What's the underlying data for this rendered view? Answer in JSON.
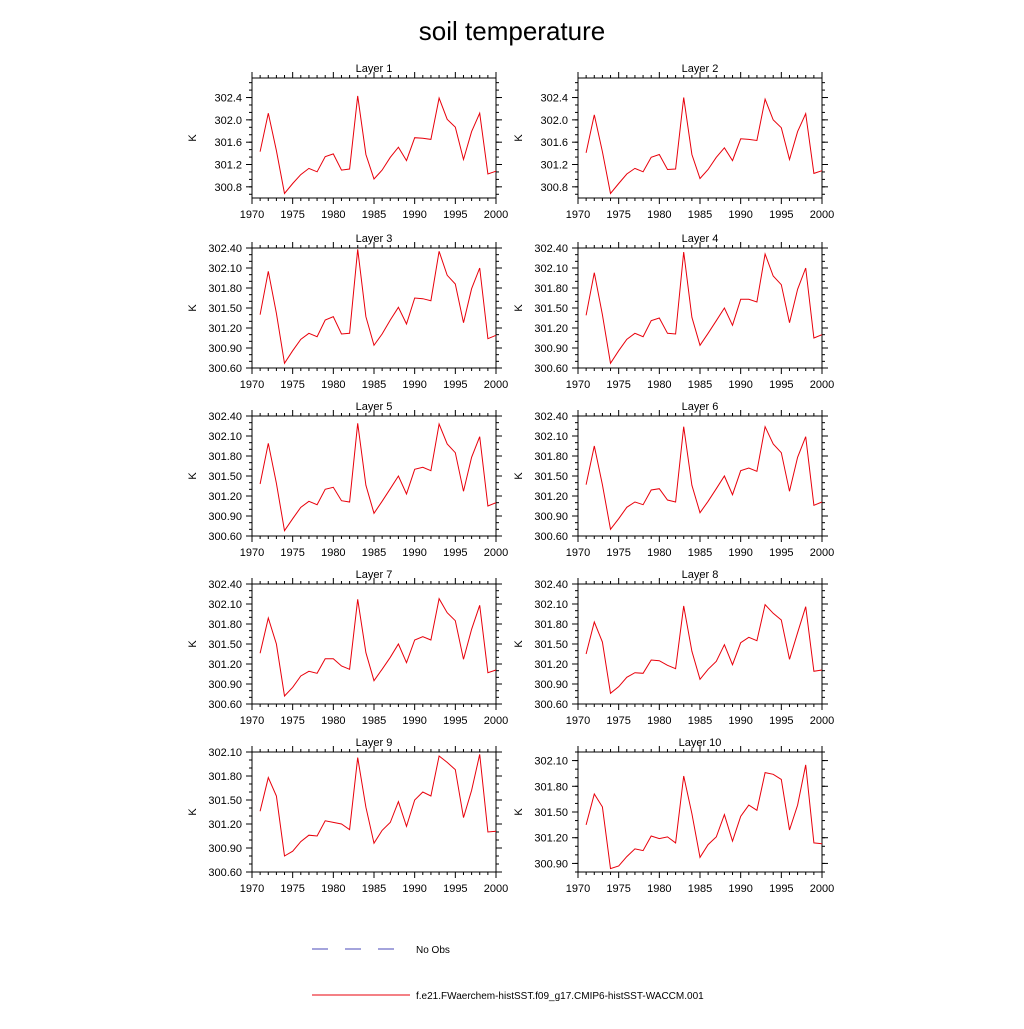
{
  "title": "soil temperature",
  "colors": {
    "model": "#e8000b",
    "obs": "#4a4ab8",
    "axis": "#000000"
  },
  "legend": {
    "obs_label": "No Obs",
    "model_label": "f.e21.FWaerchem-histSST.f09_g17.CMIP6-histSST-WACCM.001"
  },
  "chart_data": [
    {
      "type": "line",
      "title": "Layer 1",
      "ylabel": "K",
      "xlim": [
        1970,
        2000
      ],
      "xticks": [
        1970,
        1975,
        1980,
        1985,
        1990,
        1995,
        2000
      ],
      "ylim": [
        300.6,
        302.75
      ],
      "yticks": [
        "300.8",
        "301.2",
        "301.6",
        "302.0",
        "302.4"
      ],
      "x": [
        1971,
        1972,
        1973,
        1974,
        1975,
        1976,
        1977,
        1978,
        1979,
        1980,
        1981,
        1982,
        1983,
        1984,
        1985,
        1986,
        1987,
        1988,
        1989,
        1990,
        1991,
        1992,
        1993,
        1994,
        1995,
        1996,
        1997,
        1998,
        1999,
        2000
      ],
      "series": [
        {
          "name": "f.e21.FWaerchem-histSST.f09_g17.CMIP6-histSST-WACCM.001",
          "values": [
            301.43,
            302.12,
            301.45,
            300.68,
            300.86,
            301.02,
            301.13,
            301.07,
            301.34,
            301.39,
            301.1,
            301.12,
            302.43,
            301.38,
            300.94,
            301.1,
            301.33,
            301.51,
            301.27,
            301.68,
            301.67,
            301.65,
            302.39,
            302.01,
            301.87,
            301.29,
            301.79,
            302.12,
            301.03,
            301.08
          ]
        }
      ]
    },
    {
      "type": "line",
      "title": "Layer 2",
      "ylabel": "K",
      "xlim": [
        1970,
        2000
      ],
      "xticks": [
        1970,
        1975,
        1980,
        1985,
        1990,
        1995,
        2000
      ],
      "ylim": [
        300.6,
        302.75
      ],
      "yticks": [
        "300.8",
        "301.2",
        "301.6",
        "302.0",
        "302.4"
      ],
      "x": [
        1971,
        1972,
        1973,
        1974,
        1975,
        1976,
        1977,
        1978,
        1979,
        1980,
        1981,
        1982,
        1983,
        1984,
        1985,
        1986,
        1987,
        1988,
        1989,
        1990,
        1991,
        1992,
        1993,
        1994,
        1995,
        1996,
        1997,
        1998,
        1999,
        2000
      ],
      "series": [
        {
          "name": "f.e21.FWaerchem-histSST.f09_g17.CMIP6-histSST-WACCM.001",
          "values": [
            301.41,
            302.09,
            301.43,
            300.68,
            300.86,
            301.03,
            301.13,
            301.07,
            301.33,
            301.38,
            301.11,
            301.12,
            302.4,
            301.38,
            300.95,
            301.11,
            301.33,
            301.5,
            301.27,
            301.66,
            301.65,
            301.63,
            302.37,
            302.0,
            301.86,
            301.29,
            301.79,
            302.11,
            301.04,
            301.09
          ]
        }
      ]
    },
    {
      "type": "line",
      "title": "Layer 3",
      "ylabel": "K",
      "xlim": [
        1970,
        2000
      ],
      "xticks": [
        1970,
        1975,
        1980,
        1985,
        1990,
        1995,
        2000
      ],
      "ylim": [
        300.6,
        302.4
      ],
      "yticks": [
        "300.60",
        "300.90",
        "301.20",
        "301.50",
        "301.80",
        "302.10",
        "302.40"
      ],
      "x": [
        1971,
        1972,
        1973,
        1974,
        1975,
        1976,
        1977,
        1978,
        1979,
        1980,
        1981,
        1982,
        1983,
        1984,
        1985,
        1986,
        1987,
        1988,
        1989,
        1990,
        1991,
        1992,
        1993,
        1994,
        1995,
        1996,
        1997,
        1998,
        1999,
        2000
      ],
      "series": [
        {
          "name": "f.e21.FWaerchem-histSST.f09_g17.CMIP6-histSST-WACCM.001",
          "values": [
            301.4,
            302.05,
            301.42,
            300.67,
            300.86,
            301.03,
            301.12,
            301.07,
            301.32,
            301.37,
            301.11,
            301.12,
            302.38,
            301.37,
            300.94,
            301.11,
            301.32,
            301.51,
            301.26,
            301.65,
            301.64,
            301.61,
            302.35,
            301.99,
            301.86,
            301.28,
            301.79,
            302.1,
            301.04,
            301.09
          ]
        }
      ]
    },
    {
      "type": "line",
      "title": "Layer 4",
      "ylabel": "K",
      "xlim": [
        1970,
        2000
      ],
      "xticks": [
        1970,
        1975,
        1980,
        1985,
        1990,
        1995,
        2000
      ],
      "ylim": [
        300.6,
        302.4
      ],
      "yticks": [
        "300.60",
        "300.90",
        "301.20",
        "301.50",
        "301.80",
        "302.10",
        "302.40"
      ],
      "x": [
        1971,
        1972,
        1973,
        1974,
        1975,
        1976,
        1977,
        1978,
        1979,
        1980,
        1981,
        1982,
        1983,
        1984,
        1985,
        1986,
        1987,
        1988,
        1989,
        1990,
        1991,
        1992,
        1993,
        1994,
        1995,
        1996,
        1997,
        1998,
        1999,
        2000
      ],
      "series": [
        {
          "name": "f.e21.FWaerchem-histSST.f09_g17.CMIP6-histSST-WACCM.001",
          "values": [
            301.39,
            302.03,
            301.4,
            300.67,
            300.86,
            301.03,
            301.12,
            301.07,
            301.31,
            301.35,
            301.12,
            301.11,
            302.34,
            301.36,
            300.94,
            301.12,
            301.31,
            301.5,
            301.24,
            301.63,
            301.63,
            301.59,
            302.31,
            301.98,
            301.85,
            301.28,
            301.78,
            302.1,
            301.05,
            301.1
          ]
        }
      ]
    },
    {
      "type": "line",
      "title": "Layer 5",
      "ylabel": "K",
      "xlim": [
        1970,
        2000
      ],
      "xticks": [
        1970,
        1975,
        1980,
        1985,
        1990,
        1995,
        2000
      ],
      "ylim": [
        300.6,
        302.4
      ],
      "yticks": [
        "300.60",
        "300.90",
        "301.20",
        "301.50",
        "301.80",
        "302.10",
        "302.40"
      ],
      "x": [
        1971,
        1972,
        1973,
        1974,
        1975,
        1976,
        1977,
        1978,
        1979,
        1980,
        1981,
        1982,
        1983,
        1984,
        1985,
        1986,
        1987,
        1988,
        1989,
        1990,
        1991,
        1992,
        1993,
        1994,
        1995,
        1996,
        1997,
        1998,
        1999,
        2000
      ],
      "series": [
        {
          "name": "f.e21.FWaerchem-histSST.f09_g17.CMIP6-histSST-WACCM.001",
          "values": [
            301.38,
            301.99,
            301.39,
            300.68,
            300.86,
            301.03,
            301.12,
            301.07,
            301.3,
            301.33,
            301.13,
            301.11,
            302.29,
            301.36,
            300.94,
            301.12,
            301.31,
            301.5,
            301.23,
            301.6,
            301.63,
            301.58,
            302.28,
            301.98,
            301.85,
            301.27,
            301.78,
            302.09,
            301.05,
            301.1
          ]
        }
      ]
    },
    {
      "type": "line",
      "title": "Layer 6",
      "ylabel": "K",
      "xlim": [
        1970,
        2000
      ],
      "xticks": [
        1970,
        1975,
        1980,
        1985,
        1990,
        1995,
        2000
      ],
      "ylim": [
        300.6,
        302.4
      ],
      "yticks": [
        "300.60",
        "300.90",
        "301.20",
        "301.50",
        "301.80",
        "302.10",
        "302.40"
      ],
      "x": [
        1971,
        1972,
        1973,
        1974,
        1975,
        1976,
        1977,
        1978,
        1979,
        1980,
        1981,
        1982,
        1983,
        1984,
        1985,
        1986,
        1987,
        1988,
        1989,
        1990,
        1991,
        1992,
        1993,
        1994,
        1995,
        1996,
        1997,
        1998,
        1999,
        2000
      ],
      "series": [
        {
          "name": "f.e21.FWaerchem-histSST.f09_g17.CMIP6-histSST-WACCM.001",
          "values": [
            301.37,
            301.95,
            301.37,
            300.7,
            300.86,
            301.03,
            301.11,
            301.07,
            301.29,
            301.31,
            301.14,
            301.11,
            302.24,
            301.36,
            300.95,
            301.12,
            301.31,
            301.5,
            301.22,
            301.58,
            301.62,
            301.57,
            302.24,
            301.98,
            301.85,
            301.27,
            301.78,
            302.09,
            301.06,
            301.11
          ]
        }
      ]
    },
    {
      "type": "line",
      "title": "Layer 7",
      "ylabel": "K",
      "xlim": [
        1970,
        2000
      ],
      "xticks": [
        1970,
        1975,
        1980,
        1985,
        1990,
        1995,
        2000
      ],
      "ylim": [
        300.6,
        302.4
      ],
      "yticks": [
        "300.60",
        "300.90",
        "301.20",
        "301.50",
        "301.80",
        "302.10",
        "302.40"
      ],
      "x": [
        1971,
        1972,
        1973,
        1974,
        1975,
        1976,
        1977,
        1978,
        1979,
        1980,
        1981,
        1982,
        1983,
        1984,
        1985,
        1986,
        1987,
        1988,
        1989,
        1990,
        1991,
        1992,
        1993,
        1994,
        1995,
        1996,
        1997,
        1998,
        1999,
        2000
      ],
      "series": [
        {
          "name": "f.e21.FWaerchem-histSST.f09_g17.CMIP6-histSST-WACCM.001",
          "values": [
            301.36,
            301.89,
            301.5,
            300.72,
            300.85,
            301.02,
            301.09,
            301.06,
            301.28,
            301.28,
            301.17,
            301.12,
            302.17,
            301.37,
            300.95,
            301.12,
            301.3,
            301.5,
            301.22,
            301.56,
            301.61,
            301.56,
            302.18,
            301.97,
            301.85,
            301.27,
            301.72,
            302.08,
            301.07,
            301.11
          ]
        }
      ]
    },
    {
      "type": "line",
      "title": "Layer 8",
      "ylabel": "K",
      "xlim": [
        1970,
        2000
      ],
      "xticks": [
        1970,
        1975,
        1980,
        1985,
        1990,
        1995,
        2000
      ],
      "ylim": [
        300.6,
        302.4
      ],
      "yticks": [
        "300.60",
        "300.90",
        "301.20",
        "301.50",
        "301.80",
        "302.10",
        "302.40"
      ],
      "x": [
        1971,
        1972,
        1973,
        1974,
        1975,
        1976,
        1977,
        1978,
        1979,
        1980,
        1981,
        1982,
        1983,
        1984,
        1985,
        1986,
        1987,
        1988,
        1989,
        1990,
        1991,
        1992,
        1993,
        1994,
        1995,
        1996,
        1997,
        1998,
        1999,
        2000
      ],
      "series": [
        {
          "name": "f.e21.FWaerchem-histSST.f09_g17.CMIP6-histSST-WACCM.001",
          "values": [
            301.35,
            301.83,
            301.53,
            300.76,
            300.86,
            301.0,
            301.07,
            301.06,
            301.26,
            301.25,
            301.18,
            301.13,
            302.07,
            301.39,
            300.97,
            301.12,
            301.24,
            301.49,
            301.19,
            301.52,
            301.6,
            301.55,
            302.09,
            301.96,
            301.86,
            301.27,
            301.67,
            302.06,
            301.09,
            301.11
          ]
        }
      ]
    },
    {
      "type": "line",
      "title": "Layer 9",
      "ylabel": "K",
      "xlim": [
        1970,
        2000
      ],
      "xticks": [
        1970,
        1975,
        1980,
        1985,
        1990,
        1995,
        2000
      ],
      "ylim": [
        300.6,
        302.1
      ],
      "yticks": [
        "300.60",
        "300.90",
        "301.20",
        "301.50",
        "301.80",
        "302.10"
      ],
      "x": [
        1971,
        1972,
        1973,
        1974,
        1975,
        1976,
        1977,
        1978,
        1979,
        1980,
        1981,
        1982,
        1983,
        1984,
        1985,
        1986,
        1987,
        1988,
        1989,
        1990,
        1991,
        1992,
        1993,
        1994,
        1995,
        1996,
        1997,
        1998,
        1999,
        2000
      ],
      "series": [
        {
          "name": "f.e21.FWaerchem-histSST.f09_g17.CMIP6-histSST-WACCM.001",
          "values": [
            301.36,
            301.78,
            301.55,
            300.8,
            300.86,
            300.98,
            301.06,
            301.05,
            301.24,
            301.22,
            301.2,
            301.13,
            302.03,
            301.41,
            300.96,
            301.12,
            301.22,
            301.48,
            301.17,
            301.5,
            301.6,
            301.55,
            302.05,
            301.97,
            301.88,
            301.28,
            301.62,
            302.07,
            301.1,
            301.11
          ]
        }
      ]
    },
    {
      "type": "line",
      "title": "Layer 10",
      "ylabel": "K",
      "xlim": [
        1970,
        2000
      ],
      "xticks": [
        1970,
        1975,
        1980,
        1985,
        1990,
        1995,
        2000
      ],
      "ylim": [
        300.8,
        302.2
      ],
      "yticks": [
        "300.90",
        "301.20",
        "301.50",
        "301.80",
        "302.10"
      ],
      "x": [
        1971,
        1972,
        1973,
        1974,
        1975,
        1976,
        1977,
        1978,
        1979,
        1980,
        1981,
        1982,
        1983,
        1984,
        1985,
        1986,
        1987,
        1988,
        1989,
        1990,
        1991,
        1992,
        1993,
        1994,
        1995,
        1996,
        1997,
        1998,
        1999,
        2000
      ],
      "series": [
        {
          "name": "f.e21.FWaerchem-histSST.f09_g17.CMIP6-histSST-WACCM.001",
          "values": [
            301.35,
            301.71,
            301.56,
            300.84,
            300.87,
            300.98,
            301.07,
            301.05,
            301.22,
            301.19,
            301.21,
            301.14,
            301.92,
            301.48,
            300.97,
            301.12,
            301.21,
            301.47,
            301.16,
            301.45,
            301.58,
            301.52,
            301.96,
            301.94,
            301.88,
            301.29,
            301.58,
            302.05,
            301.14,
            301.13
          ]
        }
      ]
    }
  ]
}
